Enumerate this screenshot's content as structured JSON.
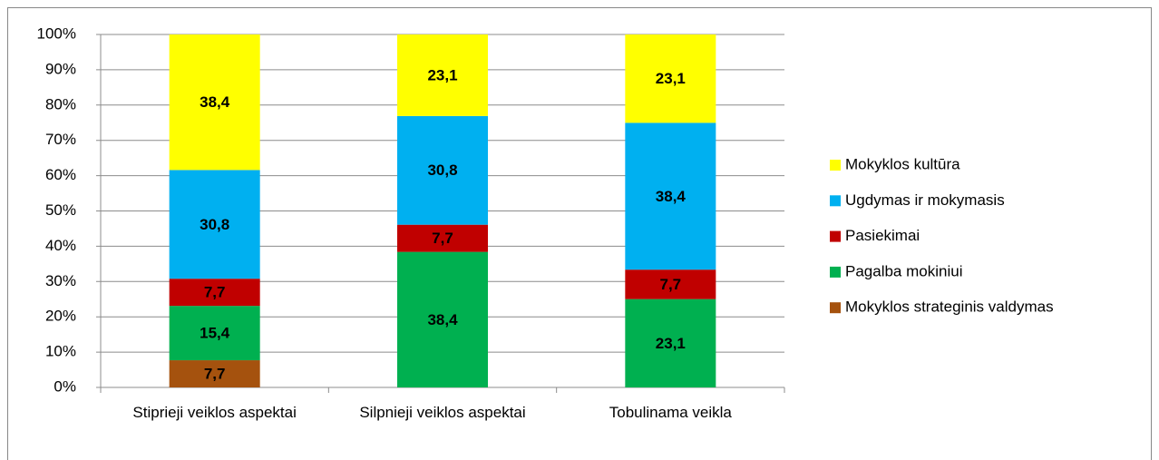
{
  "chart_data": {
    "type": "bar",
    "stacking": "percent",
    "categories": [
      "Stiprieji veiklos aspektai",
      "Silpnieji veiklos aspektai",
      "Tobulinama veikla"
    ],
    "series": [
      {
        "name": "Mokyklos strateginis valdymas",
        "color": "#a5520e",
        "values": [
          7.7,
          null,
          null
        ],
        "value_labels": [
          "7,7",
          null,
          null
        ]
      },
      {
        "name": "Pagalba mokiniui",
        "color": "#00b050",
        "values": [
          15.4,
          38.4,
          23.1
        ],
        "value_labels": [
          "15,4",
          "38,4",
          "23,1"
        ]
      },
      {
        "name": "Pasiekimai",
        "color": "#c00000",
        "values": [
          7.7,
          7.7,
          7.7
        ],
        "value_labels": [
          "7,7",
          "7,7",
          "7,7"
        ]
      },
      {
        "name": "Ugdymas ir mokymasis",
        "color": "#00b0f0",
        "values": [
          30.8,
          30.8,
          38.4
        ],
        "value_labels": [
          "30,8",
          "30,8",
          "38,4"
        ]
      },
      {
        "name": "Mokyklos kultūra",
        "color": "#ffff00",
        "values": [
          38.4,
          23.1,
          23.1
        ],
        "value_labels": [
          "38,4",
          "23,1",
          "23,1"
        ]
      }
    ],
    "ylim": [
      0,
      100
    ],
    "yticks": [
      {
        "value": 0,
        "label": "0%"
      },
      {
        "value": 10,
        "label": "10%"
      },
      {
        "value": 20,
        "label": "20%"
      },
      {
        "value": 30,
        "label": "30%"
      },
      {
        "value": 40,
        "label": "40%"
      },
      {
        "value": 50,
        "label": "50%"
      },
      {
        "value": 60,
        "label": "60%"
      },
      {
        "value": 70,
        "label": "70%"
      },
      {
        "value": 80,
        "label": "80%"
      },
      {
        "value": 90,
        "label": "90%"
      },
      {
        "value": 100,
        "label": "100%"
      }
    ],
    "grid": true,
    "legend": "right"
  }
}
